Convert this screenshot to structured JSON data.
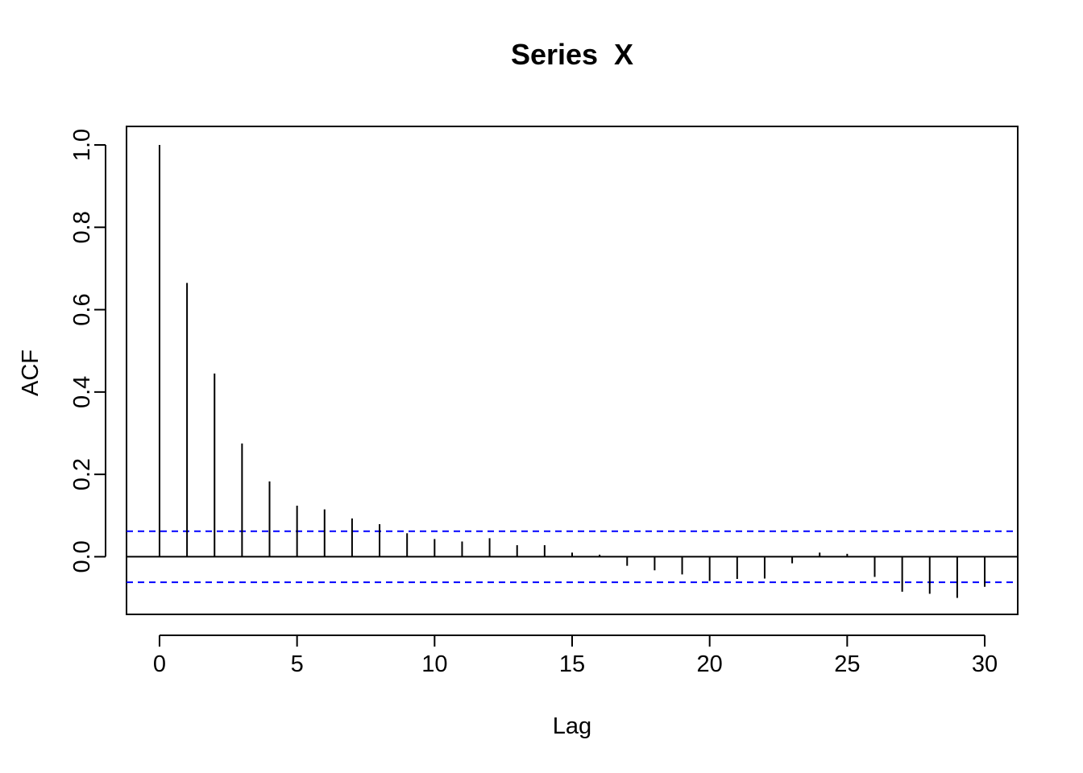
{
  "chart_data": {
    "type": "bar",
    "title": "Series  X",
    "xlabel": "Lag",
    "ylabel": "ACF",
    "xlim": [
      -1.2,
      31.2
    ],
    "ylim": [
      -0.14,
      1.045
    ],
    "x_ticks": [
      0,
      5,
      10,
      15,
      20,
      25,
      30
    ],
    "x_tick_labels": [
      "0",
      "5",
      "10",
      "15",
      "20",
      "25",
      "30"
    ],
    "y_ticks": [
      0.0,
      0.2,
      0.4,
      0.6,
      0.8,
      1.0
    ],
    "y_tick_labels": [
      "0.0",
      "0.2",
      "0.4",
      "0.6",
      "0.8",
      "1.0"
    ],
    "grid": false,
    "series": [
      {
        "lags": [
          0,
          1,
          2,
          3,
          4,
          5,
          6,
          7,
          8,
          9,
          10,
          11,
          12,
          13,
          14,
          15,
          16,
          17,
          18,
          19,
          20,
          21,
          22,
          23,
          24,
          25,
          26,
          27,
          28,
          29,
          30
        ],
        "values": [
          1.0,
          0.665,
          0.445,
          0.275,
          0.183,
          0.124,
          0.115,
          0.093,
          0.079,
          0.057,
          0.043,
          0.037,
          0.045,
          0.028,
          0.028,
          0.01,
          0.005,
          -0.022,
          -0.033,
          -0.043,
          -0.059,
          -0.054,
          -0.053,
          -0.016,
          0.01,
          0.007,
          -0.049,
          -0.085,
          -0.09,
          -0.1,
          -0.073
        ],
        "color": "#000000"
      }
    ],
    "confidence_band": {
      "upper": 0.062,
      "lower": -0.062,
      "color": "#0000ff",
      "style": "dashed"
    },
    "zero_line": true
  }
}
